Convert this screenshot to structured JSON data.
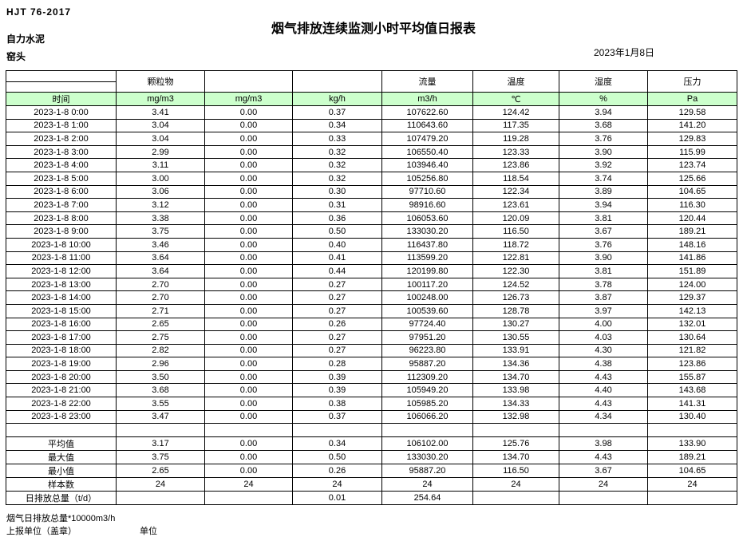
{
  "header": {
    "doc_code": "HJT  76-2017",
    "title": "烟气排放连续监测小时平均值日报表",
    "company": "自力水泥",
    "location": "窑头",
    "date": "2023年1月8日"
  },
  "table": {
    "group_headers": [
      "",
      "颗粒物",
      "",
      "",
      "流量",
      "温度",
      "湿度",
      "压力"
    ],
    "unit_row": [
      "时间",
      "mg/m3",
      "mg/m3",
      "kg/h",
      "m3/h",
      "℃",
      "%",
      "Pa"
    ],
    "rows": [
      [
        "2023-1-8 0:00",
        "3.41",
        "0.00",
        "0.37",
        "107622.60",
        "124.42",
        "3.94",
        "129.58"
      ],
      [
        "2023-1-8 1:00",
        "3.04",
        "0.00",
        "0.34",
        "110643.60",
        "117.35",
        "3.68",
        "141.20"
      ],
      [
        "2023-1-8 2:00",
        "3.04",
        "0.00",
        "0.33",
        "107479.20",
        "119.28",
        "3.76",
        "129.83"
      ],
      [
        "2023-1-8 3:00",
        "2.99",
        "0.00",
        "0.32",
        "106550.40",
        "123.33",
        "3.90",
        "115.99"
      ],
      [
        "2023-1-8 4:00",
        "3.11",
        "0.00",
        "0.32",
        "103946.40",
        "123.86",
        "3.92",
        "123.74"
      ],
      [
        "2023-1-8 5:00",
        "3.00",
        "0.00",
        "0.32",
        "105256.80",
        "118.54",
        "3.74",
        "125.66"
      ],
      [
        "2023-1-8 6:00",
        "3.06",
        "0.00",
        "0.30",
        "97710.60",
        "122.34",
        "3.89",
        "104.65"
      ],
      [
        "2023-1-8 7:00",
        "3.12",
        "0.00",
        "0.31",
        "98916.60",
        "123.61",
        "3.94",
        "116.30"
      ],
      [
        "2023-1-8 8:00",
        "3.38",
        "0.00",
        "0.36",
        "106053.60",
        "120.09",
        "3.81",
        "120.44"
      ],
      [
        "2023-1-8 9:00",
        "3.75",
        "0.00",
        "0.50",
        "133030.20",
        "116.50",
        "3.67",
        "189.21"
      ],
      [
        "2023-1-8 10:00",
        "3.46",
        "0.00",
        "0.40",
        "116437.80",
        "118.72",
        "3.76",
        "148.16"
      ],
      [
        "2023-1-8 11:00",
        "3.64",
        "0.00",
        "0.41",
        "113599.20",
        "122.81",
        "3.90",
        "141.86"
      ],
      [
        "2023-1-8 12:00",
        "3.64",
        "0.00",
        "0.44",
        "120199.80",
        "122.30",
        "3.81",
        "151.89"
      ],
      [
        "2023-1-8 13:00",
        "2.70",
        "0.00",
        "0.27",
        "100117.20",
        "124.52",
        "3.78",
        "124.00"
      ],
      [
        "2023-1-8 14:00",
        "2.70",
        "0.00",
        "0.27",
        "100248.00",
        "126.73",
        "3.87",
        "129.37"
      ],
      [
        "2023-1-8 15:00",
        "2.71",
        "0.00",
        "0.27",
        "100539.60",
        "128.78",
        "3.97",
        "142.13"
      ],
      [
        "2023-1-8 16:00",
        "2.65",
        "0.00",
        "0.26",
        "97724.40",
        "130.27",
        "4.00",
        "132.01"
      ],
      [
        "2023-1-8 17:00",
        "2.75",
        "0.00",
        "0.27",
        "97951.20",
        "130.55",
        "4.03",
        "130.64"
      ],
      [
        "2023-1-8 18:00",
        "2.82",
        "0.00",
        "0.27",
        "96223.80",
        "133.91",
        "4.30",
        "121.82"
      ],
      [
        "2023-1-8 19:00",
        "2.96",
        "0.00",
        "0.28",
        "95887.20",
        "134.36",
        "4.38",
        "123.86"
      ],
      [
        "2023-1-8 20:00",
        "3.50",
        "0.00",
        "0.39",
        "112309.20",
        "134.70",
        "4.43",
        "155.87"
      ],
      [
        "2023-1-8 21:00",
        "3.68",
        "0.00",
        "0.39",
        "105949.20",
        "133.98",
        "4.40",
        "143.68"
      ],
      [
        "2023-1-8 22:00",
        "3.55",
        "0.00",
        "0.38",
        "105985.20",
        "134.33",
        "4.43",
        "141.31"
      ],
      [
        "2023-1-8 23:00",
        "3.47",
        "0.00",
        "0.37",
        "106066.20",
        "132.98",
        "4.34",
        "130.40"
      ]
    ],
    "summary": [
      {
        "label": "平均值",
        "values": [
          "3.17",
          "0.00",
          "0.34",
          "106102.00",
          "125.76",
          "3.98",
          "133.90"
        ]
      },
      {
        "label": "最大值",
        "values": [
          "3.75",
          "0.00",
          "0.50",
          "133030.20",
          "134.70",
          "4.43",
          "189.21"
        ]
      },
      {
        "label": "最小值",
        "values": [
          "2.65",
          "0.00",
          "0.26",
          "95887.20",
          "116.50",
          "3.67",
          "104.65"
        ]
      },
      {
        "label": "样本数",
        "values": [
          "24",
          "24",
          "24",
          "24",
          "24",
          "24",
          "24"
        ]
      },
      {
        "label": "日排放总量（t/d）",
        "align": "left",
        "values": [
          "",
          "",
          "0.01",
          "254.64",
          "",
          "",
          ""
        ]
      }
    ]
  },
  "footer": {
    "note": "烟气日排放总量*10000m3/h",
    "report_unit_label": "上报单位（盖章）",
    "unit_label": "单位"
  }
}
